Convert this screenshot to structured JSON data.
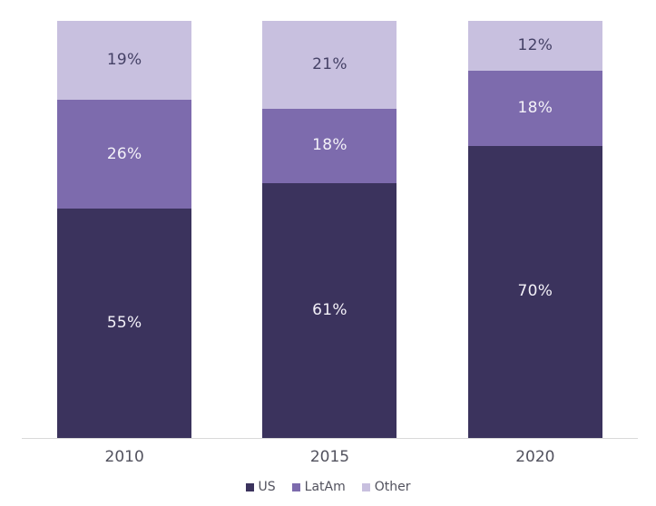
{
  "chart_data": {
    "type": "bar",
    "variant": "stacked-column-100",
    "title": "",
    "xlabel": "",
    "ylabel": "",
    "categories": [
      "2010",
      "2015",
      "2020"
    ],
    "series": [
      {
        "name": "US",
        "color": "#3b335d",
        "label_color": "#f3f1f8",
        "values": [
          55,
          61,
          70
        ]
      },
      {
        "name": "LatAm",
        "color": "#7d6bad",
        "label_color": "#f3f1f8",
        "values": [
          26,
          18,
          18
        ]
      },
      {
        "name": "Other",
        "color": "#c8c0df",
        "label_color": "#454166",
        "values": [
          19,
          21,
          12
        ]
      }
    ],
    "value_suffix": "%",
    "ylim": [
      0,
      100
    ],
    "grid": false,
    "y_axis_visible": false,
    "legend_position": "bottom",
    "axis_line_color": "#d9d9d9",
    "tick_label_color": "#52525e"
  }
}
